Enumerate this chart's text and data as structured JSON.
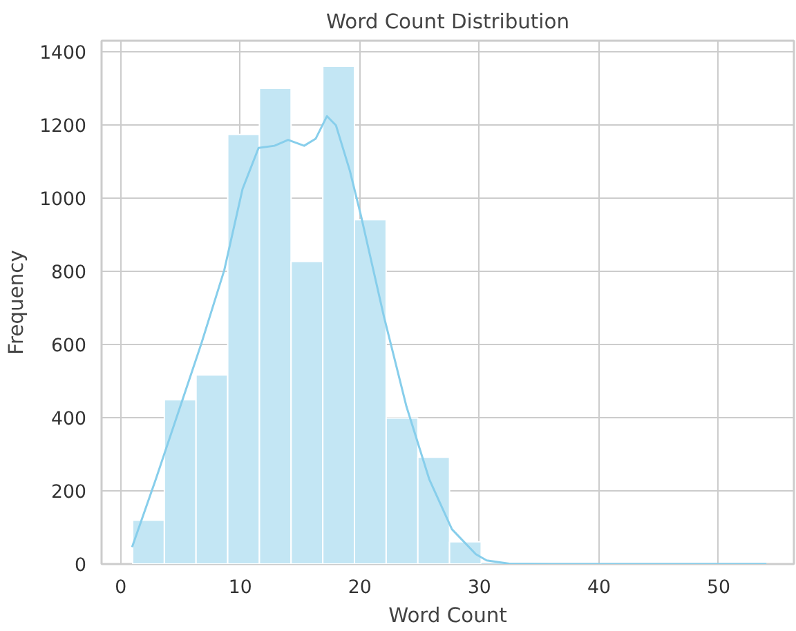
{
  "chart_data": {
    "type": "histogram",
    "title": "Word Count Distribution",
    "xlabel": "Word Count",
    "ylabel": "Frequency",
    "xlim": [
      -1.6,
      56.3
    ],
    "ylim": [
      0,
      1430
    ],
    "xticks": [
      0,
      10,
      20,
      30,
      40,
      50
    ],
    "yticks": [
      0,
      200,
      400,
      600,
      800,
      1000,
      1200,
      1400
    ],
    "grid": true,
    "series": [
      {
        "color": "#c3e6f4",
        "bins": [
          1,
          3.65,
          6.3,
          8.95,
          11.6,
          14.25,
          16.9,
          19.55,
          22.2,
          24.85,
          27.5,
          30.15,
          32.8,
          35.45,
          38.1,
          40.75,
          43.4,
          46.05,
          48.7,
          51.35,
          54
        ],
        "values": [
          120,
          449,
          517,
          1174,
          1300,
          827,
          1360,
          941,
          399,
          292,
          61,
          0,
          0,
          0,
          0,
          0,
          0,
          0,
          0,
          0
        ]
      },
      {
        "type": "line",
        "color": "#87ceeb",
        "x": [
          0.95,
          2.94,
          4.85,
          6.76,
          8.66,
          10.19,
          11.53,
          12.86,
          14.0,
          15.34,
          16.3,
          17.25,
          18.0,
          19.16,
          20.1,
          22.0,
          23.9,
          25.8,
          27.7,
          29.7,
          30.6,
          32.5,
          36,
          54
        ],
        "values": [
          46,
          232,
          418,
          604,
          803,
          1025,
          1137,
          1143,
          1159,
          1143,
          1162,
          1224,
          1199,
          1075,
          951,
          678,
          430,
          232,
          95,
          27,
          10,
          1,
          0,
          0
        ]
      }
    ]
  }
}
